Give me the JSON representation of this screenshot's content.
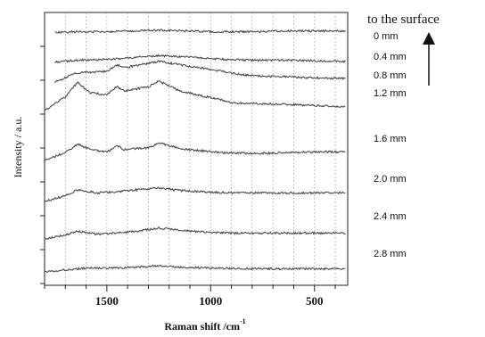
{
  "chart_data": {
    "type": "line",
    "xlabel": "Raman shift /cm",
    "xlabel_superscript": "-1",
    "ylabel": "Intensity / a.u.",
    "x_reversed": true,
    "xlim": [
      1800,
      340
    ],
    "x_ticks": [
      1500,
      1000,
      500
    ],
    "grid": "vertical dotted",
    "annotation": "to the surface",
    "series": [
      {
        "name": "0 mm",
        "points": [
          [
            1750,
            0.08
          ],
          [
            1650,
            0.1
          ],
          [
            1500,
            0.1
          ],
          [
            1400,
            0.12
          ],
          [
            1250,
            0.14
          ],
          [
            1100,
            0.12
          ],
          [
            1000,
            0.1
          ],
          [
            800,
            0.1
          ],
          [
            600,
            0.12
          ],
          [
            450,
            0.12
          ],
          [
            350,
            0.12
          ]
        ]
      },
      {
        "name": "0.4 mm",
        "points": [
          [
            1750,
            0.05
          ],
          [
            1650,
            0.1
          ],
          [
            1500,
            0.12
          ],
          [
            1400,
            0.16
          ],
          [
            1250,
            0.22
          ],
          [
            1100,
            0.18
          ],
          [
            1000,
            0.14
          ],
          [
            800,
            0.1
          ],
          [
            600,
            0.1
          ],
          [
            450,
            0.08
          ],
          [
            350,
            0.07
          ]
        ]
      },
      {
        "name": "0.8 mm",
        "points": [
          [
            1750,
            0.02
          ],
          [
            1650,
            0.25
          ],
          [
            1500,
            0.3
          ],
          [
            1450,
            0.45
          ],
          [
            1400,
            0.4
          ],
          [
            1250,
            0.55
          ],
          [
            1100,
            0.42
          ],
          [
            1000,
            0.35
          ],
          [
            900,
            0.25
          ],
          [
            800,
            0.18
          ],
          [
            600,
            0.15
          ],
          [
            450,
            0.12
          ],
          [
            350,
            0.12
          ]
        ]
      },
      {
        "name": "1.2 mm",
        "points": [
          [
            1800,
            0.0
          ],
          [
            1700,
            0.35
          ],
          [
            1640,
            0.72
          ],
          [
            1580,
            0.45
          ],
          [
            1500,
            0.4
          ],
          [
            1450,
            0.62
          ],
          [
            1420,
            0.5
          ],
          [
            1300,
            0.6
          ],
          [
            1250,
            0.75
          ],
          [
            1150,
            0.5
          ],
          [
            1050,
            0.38
          ],
          [
            950,
            0.28
          ],
          [
            900,
            0.2
          ],
          [
            800,
            0.18
          ],
          [
            600,
            0.15
          ],
          [
            450,
            0.12
          ],
          [
            350,
            0.1
          ]
        ]
      },
      {
        "name": "1.6 mm",
        "points": [
          [
            1800,
            0.0
          ],
          [
            1700,
            0.2
          ],
          [
            1640,
            0.42
          ],
          [
            1580,
            0.28
          ],
          [
            1500,
            0.22
          ],
          [
            1450,
            0.38
          ],
          [
            1420,
            0.28
          ],
          [
            1300,
            0.32
          ],
          [
            1250,
            0.45
          ],
          [
            1150,
            0.3
          ],
          [
            1050,
            0.25
          ],
          [
            950,
            0.2
          ],
          [
            800,
            0.18
          ],
          [
            600,
            0.2
          ],
          [
            450,
            0.22
          ],
          [
            350,
            0.22
          ]
        ]
      },
      {
        "name": "2.0 mm",
        "points": [
          [
            1800,
            0.0
          ],
          [
            1700,
            0.15
          ],
          [
            1640,
            0.3
          ],
          [
            1550,
            0.22
          ],
          [
            1450,
            0.25
          ],
          [
            1350,
            0.3
          ],
          [
            1250,
            0.35
          ],
          [
            1150,
            0.28
          ],
          [
            1050,
            0.25
          ],
          [
            900,
            0.22
          ],
          [
            700,
            0.22
          ],
          [
            500,
            0.22
          ],
          [
            350,
            0.22
          ]
        ]
      },
      {
        "name": "2.4 mm",
        "points": [
          [
            1800,
            0.0
          ],
          [
            1700,
            0.1
          ],
          [
            1640,
            0.2
          ],
          [
            1550,
            0.12
          ],
          [
            1450,
            0.15
          ],
          [
            1350,
            0.2
          ],
          [
            1250,
            0.28
          ],
          [
            1150,
            0.22
          ],
          [
            1050,
            0.18
          ],
          [
            900,
            0.15
          ],
          [
            700,
            0.15
          ],
          [
            500,
            0.15
          ],
          [
            350,
            0.15
          ]
        ]
      },
      {
        "name": "2.8 mm",
        "points": [
          [
            1800,
            0.0
          ],
          [
            1700,
            0.05
          ],
          [
            1600,
            0.1
          ],
          [
            1450,
            0.1
          ],
          [
            1300,
            0.14
          ],
          [
            1250,
            0.16
          ],
          [
            1150,
            0.12
          ],
          [
            1000,
            0.1
          ],
          [
            800,
            0.08
          ],
          [
            600,
            0.08
          ],
          [
            350,
            0.08
          ]
        ]
      }
    ]
  }
}
